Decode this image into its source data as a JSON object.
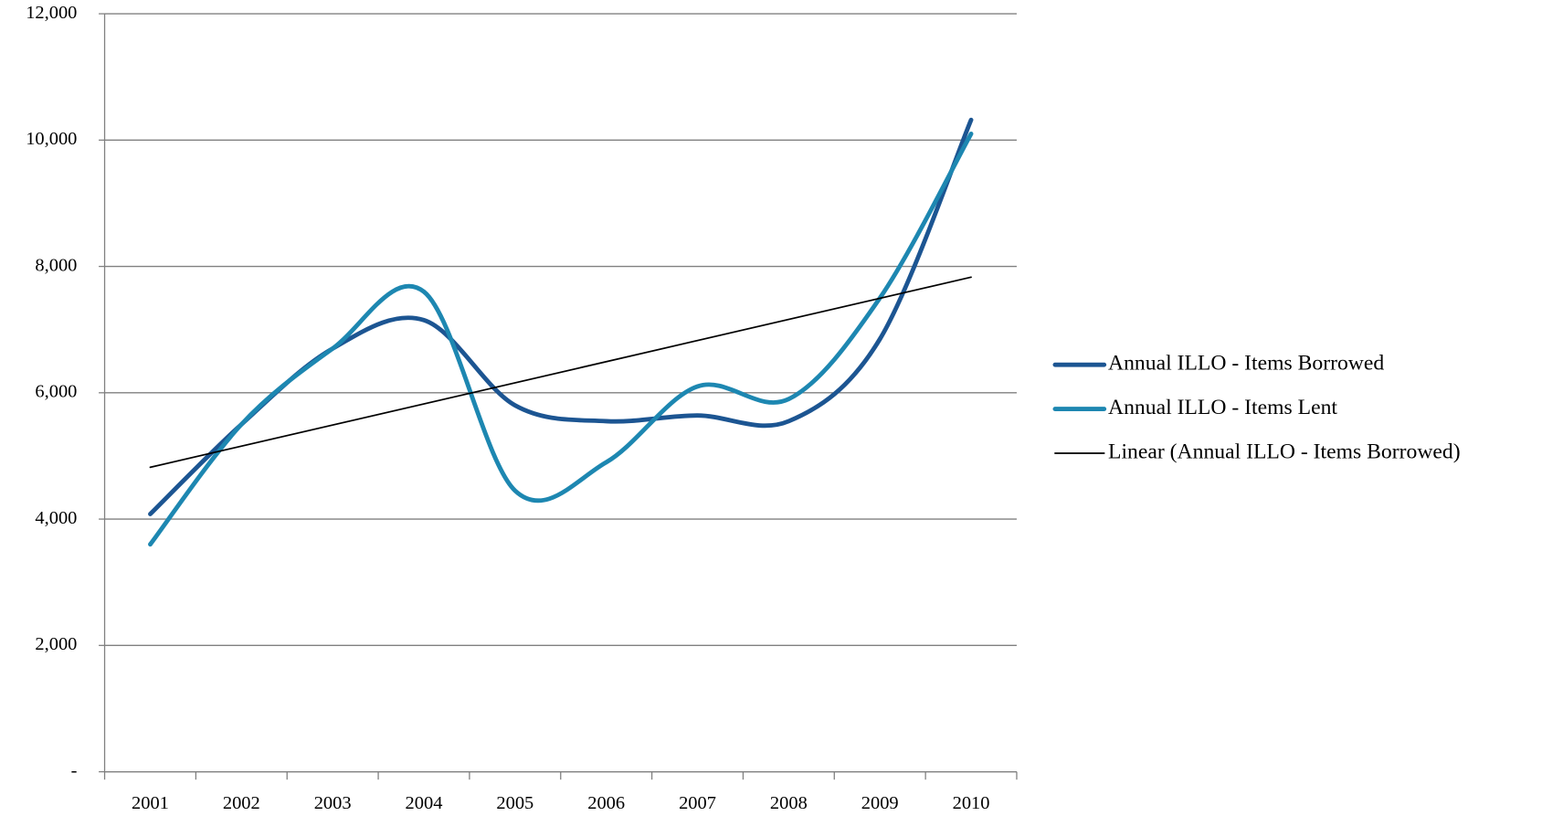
{
  "chart_data": {
    "type": "line",
    "categories": [
      "2001",
      "2002",
      "2003",
      "2004",
      "2005",
      "2006",
      "2007",
      "2008",
      "2009",
      "2010"
    ],
    "series": [
      {
        "name": "Annual ILLO - Items Borrowed",
        "color": "#1c5592",
        "values": [
          4080,
          5500,
          6700,
          7150,
          5800,
          5550,
          5640,
          5550,
          6850,
          10320
        ]
      },
      {
        "name": "Annual ILLO - Items Lent",
        "color": "#1d87b1",
        "values": [
          3600,
          5500,
          6700,
          7600,
          4450,
          4900,
          6100,
          5900,
          7500,
          10100
        ]
      },
      {
        "name": "Linear (Annual ILLO - Items Borrowed)",
        "color": "#000000",
        "values": [
          4820,
          5154,
          5488,
          5822,
          6156,
          6490,
          6824,
          7158,
          7492,
          7830
        ],
        "trend": true
      }
    ],
    "ylim": [
      0,
      12000
    ],
    "yticks": [
      {
        "value": 0,
        "label": "-"
      },
      {
        "value": 2000,
        "label": "2,000"
      },
      {
        "value": 4000,
        "label": "4,000"
      },
      {
        "value": 6000,
        "label": "6,000"
      },
      {
        "value": 8000,
        "label": "8,000"
      },
      {
        "value": 10000,
        "label": "10,000"
      },
      {
        "value": 12000,
        "label": "12,000"
      }
    ],
    "grid": true,
    "legend": "right"
  }
}
